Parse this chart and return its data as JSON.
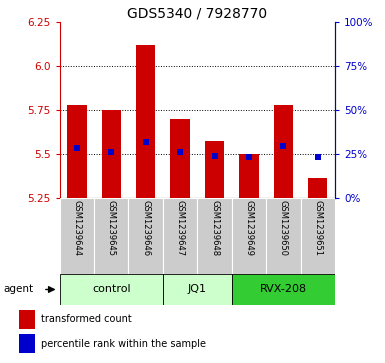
{
  "title": "GDS5340 / 7928770",
  "samples": [
    "GSM1239644",
    "GSM1239645",
    "GSM1239646",
    "GSM1239647",
    "GSM1239648",
    "GSM1239649",
    "GSM1239650",
    "GSM1239651"
  ],
  "bar_bottoms": [
    5.25,
    5.25,
    5.25,
    5.25,
    5.25,
    5.25,
    5.25,
    5.25
  ],
  "bar_tops": [
    5.78,
    5.75,
    6.12,
    5.7,
    5.57,
    5.5,
    5.78,
    5.36
  ],
  "blue_dots": [
    5.535,
    5.51,
    5.565,
    5.51,
    5.49,
    5.48,
    5.545,
    5.48
  ],
  "ylim": [
    5.25,
    6.25
  ],
  "yticks_left": [
    5.25,
    5.5,
    5.75,
    6.0,
    6.25
  ],
  "yticks_right_vals": [
    0,
    25,
    50,
    75,
    100
  ],
  "yticks_right_pos": [
    5.25,
    5.5,
    5.75,
    6.0,
    6.25
  ],
  "bar_color": "#cc0000",
  "dot_color": "#0000cc",
  "group_defs": [
    [
      0,
      2,
      "control",
      "#ccffcc"
    ],
    [
      3,
      4,
      "JQ1",
      "#ccffcc"
    ],
    [
      5,
      7,
      "RVX-208",
      "#33cc33"
    ]
  ],
  "agent_label": "agent",
  "legend_red": "transformed count",
  "legend_blue": "percentile rank within the sample",
  "title_fontsize": 10,
  "sample_fontsize": 6,
  "group_fontsize": 8
}
